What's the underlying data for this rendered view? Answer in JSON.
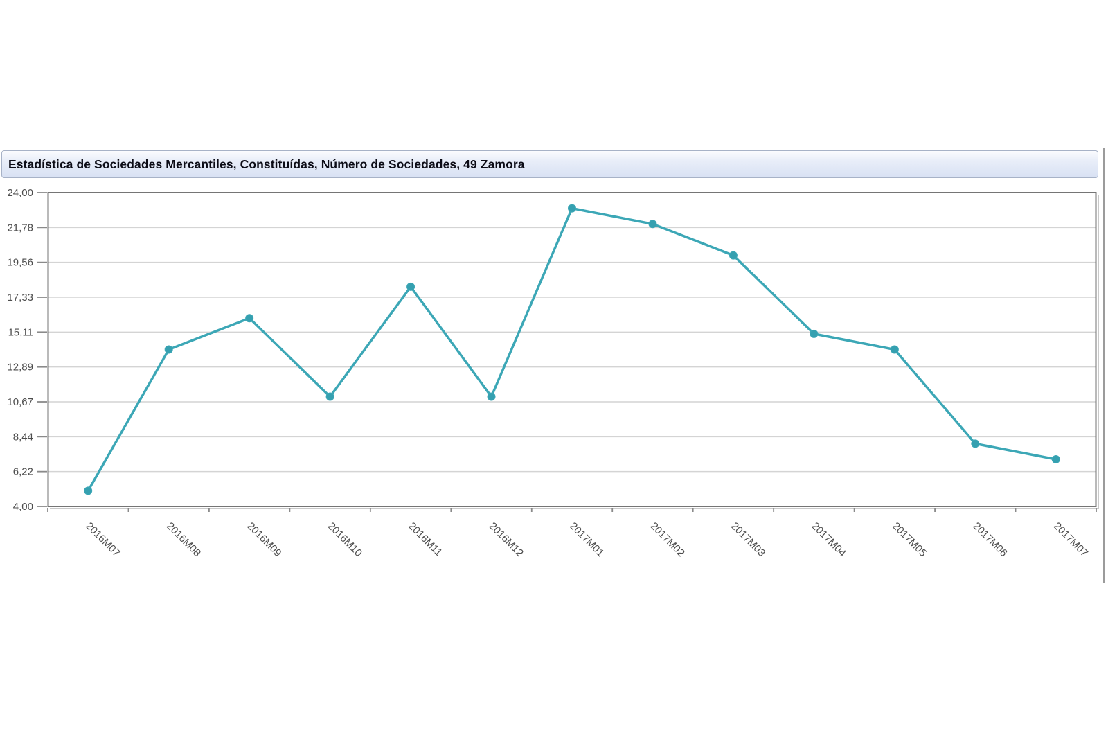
{
  "window": {
    "title": "Estadística de Sociedades Mercantiles, Constituídas, Número de Sociedades, 49 Zamora"
  },
  "chart_data": {
    "type": "line",
    "title": "Estadística de Sociedades Mercantiles, Constituídas, Número de Sociedades, 49 Zamora",
    "categories": [
      "2016M07",
      "2016M08",
      "2016M09",
      "2016M10",
      "2016M11",
      "2016M12",
      "2017M01",
      "2017M02",
      "2017M03",
      "2017M04",
      "2017M05",
      "2017M06",
      "2017M07"
    ],
    "values": [
      5,
      14,
      16,
      11,
      18,
      11,
      23,
      22,
      20,
      15,
      14,
      8,
      7
    ],
    "xlabel": "",
    "ylabel": "",
    "ylim": [
      4,
      24
    ],
    "y_tick_labels": [
      "24,00",
      "21,78",
      "19,56",
      "17,33",
      "15,11",
      "12,89",
      "10,67",
      "8,44",
      "6,22",
      "4,00"
    ],
    "y_tick_values": [
      24,
      21.78,
      19.56,
      17.33,
      15.11,
      12.89,
      10.67,
      8.44,
      6.22,
      4
    ],
    "x_tick_rotation_deg": 45,
    "grid": "horizontal",
    "legend": "none",
    "colors": {
      "line": "#3ca7b6",
      "marker": "#35a0b0",
      "grid": "#d4d4d4",
      "plot_border": "#757575",
      "tick": "#8a8a8a",
      "label": "#4d4d4d",
      "shadow": "#c9c9c9"
    }
  }
}
